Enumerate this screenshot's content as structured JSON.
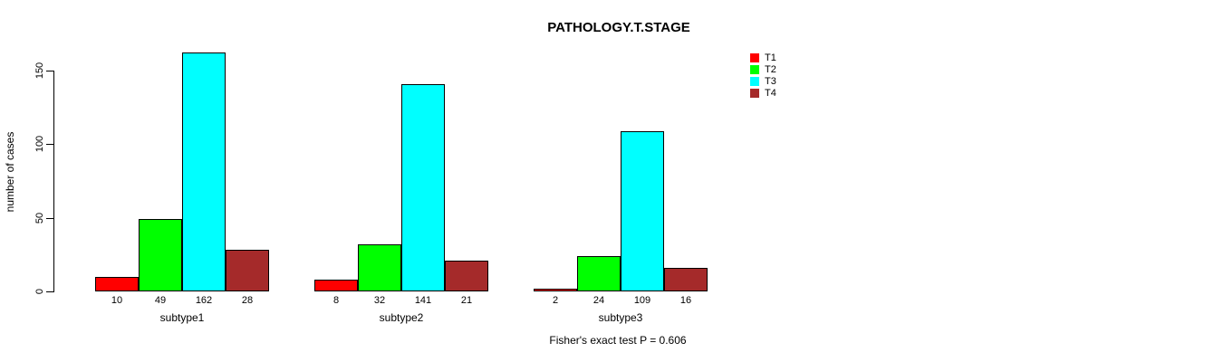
{
  "chart_data": {
    "type": "bar",
    "title": "PATHOLOGY.T.STAGE",
    "xlabel": "",
    "ylabel": "number of cases",
    "categories": [
      "subtype1",
      "subtype2",
      "subtype3"
    ],
    "series": [
      {
        "name": "T1",
        "color": "#ff0000",
        "values": [
          10,
          8,
          2
        ]
      },
      {
        "name": "T2",
        "color": "#00ff00",
        "values": [
          49,
          32,
          24
        ]
      },
      {
        "name": "T3",
        "color": "#00ffff",
        "values": [
          162,
          141,
          109
        ]
      },
      {
        "name": "T4",
        "color": "#a52a2a",
        "values": [
          28,
          21,
          16
        ]
      }
    ],
    "bar_value_labels": [
      [
        10,
        49,
        162,
        28
      ],
      [
        8,
        32,
        141,
        21
      ],
      [
        2,
        24,
        109,
        16
      ]
    ],
    "yticks": [
      0,
      50,
      100,
      150
    ],
    "ylim": [
      0,
      162
    ],
    "ytick_labels_rotated": true,
    "grid": false,
    "bar_border_color": "#000000",
    "legend": {
      "position": "top-right",
      "entries": [
        "T1",
        "T2",
        "T3",
        "T4"
      ]
    },
    "annotation": "Fisher's exact test P = 0.606"
  }
}
